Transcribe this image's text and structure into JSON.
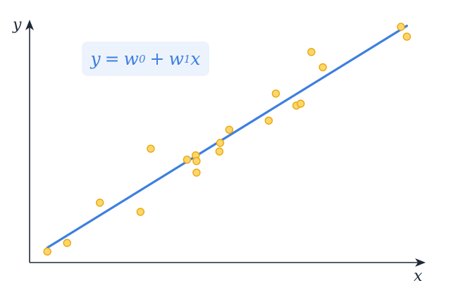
{
  "axes": {
    "x_label": "x",
    "y_label": "y"
  },
  "equation": {
    "lhs": "y",
    "eq": "=",
    "w0_base": "w",
    "w0_sub": "0",
    "plus": "+",
    "w1_base": "w",
    "w1_sub": "1",
    "var": "x"
  },
  "colors": {
    "line": "#3d7fe0",
    "point_fill": "#ffd66b",
    "point_stroke": "#e8a80f",
    "axis": "#1f2a37",
    "box_bg": "#edf3fc"
  },
  "chart_data": {
    "type": "scatter",
    "xlim": [
      0,
      100
    ],
    "ylim": [
      0,
      100
    ],
    "points": [
      {
        "x": 4.5,
        "y": 4.6
      },
      {
        "x": 9.5,
        "y": 8.2
      },
      {
        "x": 17.8,
        "y": 25.0
      },
      {
        "x": 28.1,
        "y": 21.2
      },
      {
        "x": 30.7,
        "y": 47.6
      },
      {
        "x": 39.9,
        "y": 43.0
      },
      {
        "x": 42.1,
        "y": 44.8
      },
      {
        "x": 42.3,
        "y": 42.4
      },
      {
        "x": 42.3,
        "y": 37.6
      },
      {
        "x": 48.1,
        "y": 46.4
      },
      {
        "x": 48.3,
        "y": 50.0
      },
      {
        "x": 50.6,
        "y": 55.5
      },
      {
        "x": 60.6,
        "y": 59.3
      },
      {
        "x": 62.4,
        "y": 70.6
      },
      {
        "x": 67.6,
        "y": 65.6
      },
      {
        "x": 68.7,
        "y": 66.4
      },
      {
        "x": 71.4,
        "y": 88.0
      },
      {
        "x": 74.3,
        "y": 81.6
      },
      {
        "x": 94.1,
        "y": 98.5
      },
      {
        "x": 95.6,
        "y": 94.4
      }
    ],
    "fit_line": {
      "x": [
        4.5,
        95.6
      ],
      "y": [
        6.2,
        98.9
      ]
    }
  }
}
